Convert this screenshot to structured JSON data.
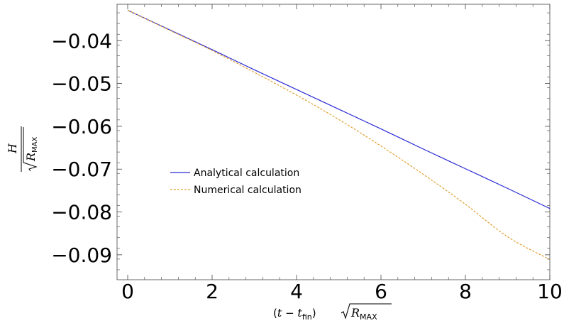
{
  "chart_data": {
    "type": "line",
    "title": "",
    "xlabel": {
      "open": "(",
      "var_t": "t",
      "minus": " − ",
      "var_t2": "t",
      "sub_fin": "fin",
      "close": ")",
      "var_R": "R",
      "sub_max": "MAX"
    },
    "ylabel": {
      "numerator": "H",
      "var_R": "R",
      "sub_max": "MAX"
    },
    "xlim": [
      0,
      10
    ],
    "ylim": [
      -0.094,
      -0.0315
    ],
    "x_ticks": [
      {
        "value": 0,
        "label": "0"
      },
      {
        "value": 2,
        "label": "2"
      },
      {
        "value": 4,
        "label": "4"
      },
      {
        "value": 6,
        "label": "6"
      },
      {
        "value": 8,
        "label": "8"
      },
      {
        "value": 10,
        "label": "10"
      }
    ],
    "y_ticks": [
      {
        "value": -0.04,
        "label": "−0.04"
      },
      {
        "value": -0.05,
        "label": "−0.05"
      },
      {
        "value": -0.06,
        "label": "−0.06"
      },
      {
        "value": -0.07,
        "label": "−0.07"
      },
      {
        "value": -0.08,
        "label": "−0.08"
      },
      {
        "value": -0.09,
        "label": "−0.09"
      }
    ],
    "grid": false,
    "legend_position": "center-left",
    "series": [
      {
        "name": "Analytical calculation",
        "color": "#2a2ad6",
        "style": "solid",
        "x": [
          0,
          1,
          2,
          3,
          4,
          5,
          6,
          7,
          8,
          9,
          10
        ],
        "y": [
          -0.0329,
          -0.0375,
          -0.0421,
          -0.0468,
          -0.0514,
          -0.056,
          -0.0606,
          -0.0653,
          -0.0699,
          -0.0745,
          -0.0792
        ]
      },
      {
        "name": "Numerical calculation",
        "color": "#e0a030",
        "style": "dashed",
        "x": [
          0,
          1,
          2,
          3,
          4,
          5,
          6,
          7,
          8,
          9,
          10
        ],
        "y": [
          -0.0329,
          -0.0376,
          -0.0423,
          -0.0474,
          -0.0527,
          -0.0584,
          -0.0646,
          -0.0712,
          -0.0782,
          -0.0858,
          -0.0911
        ]
      }
    ]
  }
}
